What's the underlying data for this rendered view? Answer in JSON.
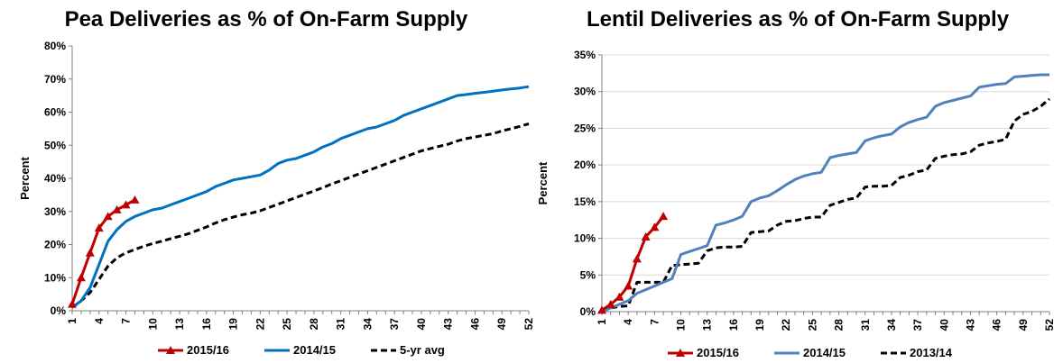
{
  "chart_data": [
    {
      "type": "line",
      "title": "Pea Deliveries as % of On-Farm Supply",
      "xlabel": "",
      "ylabel": "Percent",
      "xlim": [
        1,
        52
      ],
      "ylim": [
        0,
        80
      ],
      "yticks": [
        "0%",
        "10%",
        "20%",
        "30%",
        "40%",
        "50%",
        "60%",
        "70%",
        "80%"
      ],
      "xticks": [
        "1",
        "4",
        "7",
        "10",
        "13",
        "16",
        "19",
        "22",
        "25",
        "28",
        "31",
        "34",
        "37",
        "40",
        "43",
        "46",
        "49",
        "52"
      ],
      "grid": false,
      "legend": "bottom",
      "series": [
        {
          "name": "2015/16",
          "color": "#c00000",
          "style": "solid-triangle",
          "x": [
            1,
            2,
            3,
            4,
            5,
            6,
            7,
            8
          ],
          "y": [
            2,
            10,
            17.5,
            25,
            28.5,
            30.5,
            32,
            33.5
          ]
        },
        {
          "name": "2014/15",
          "color": "#0070c0",
          "style": "solid",
          "x": [
            1,
            2,
            3,
            4,
            5,
            6,
            7,
            8,
            9,
            10,
            11,
            12,
            13,
            14,
            15,
            16,
            17,
            18,
            19,
            20,
            21,
            22,
            23,
            24,
            25,
            26,
            27,
            28,
            29,
            30,
            31,
            32,
            33,
            34,
            35,
            36,
            37,
            38,
            39,
            40,
            41,
            42,
            43,
            44,
            45,
            46,
            47,
            48,
            49,
            50,
            51,
            52
          ],
          "y": [
            1,
            3,
            7,
            14,
            21,
            24.5,
            27,
            28.5,
            29.5,
            30.5,
            31,
            32,
            33,
            34,
            35,
            36,
            37.5,
            38.5,
            39.5,
            40,
            40.5,
            41,
            42.5,
            44.5,
            45.5,
            46,
            47,
            48,
            49.5,
            50.5,
            52,
            53,
            54,
            55,
            55.5,
            56.5,
            57.5,
            59,
            60,
            61,
            62,
            63,
            64,
            65,
            65.3,
            65.7,
            66,
            66.3,
            66.7,
            67,
            67.3,
            67.7
          ]
        },
        {
          "name": "5-yr avg",
          "color": "#000000",
          "style": "dashed",
          "x": [
            1,
            2,
            3,
            4,
            5,
            6,
            7,
            8,
            9,
            10,
            11,
            12,
            13,
            14,
            15,
            16,
            17,
            18,
            19,
            20,
            21,
            22,
            23,
            24,
            25,
            26,
            27,
            28,
            29,
            30,
            31,
            32,
            33,
            34,
            35,
            36,
            37,
            38,
            39,
            40,
            41,
            42,
            43,
            44,
            45,
            46,
            47,
            48,
            49,
            50,
            51,
            52
          ],
          "y": [
            1,
            3,
            5.5,
            9.5,
            13.5,
            16,
            17.5,
            18.5,
            19.5,
            20.3,
            21,
            21.8,
            22.5,
            23.3,
            24.3,
            25.3,
            26.5,
            27.5,
            28.3,
            29,
            29.5,
            30.2,
            31.2,
            32.2,
            33.2,
            34.2,
            35.2,
            36.2,
            37.2,
            38.3,
            39.3,
            40.3,
            41.3,
            42.3,
            43.3,
            44.3,
            45.3,
            46.3,
            47.3,
            48.3,
            49,
            49.7,
            50.3,
            51.3,
            52,
            52.5,
            53,
            53.5,
            54.3,
            55,
            55.7,
            56.5
          ]
        }
      ]
    },
    {
      "type": "line",
      "title": "Lentil Deliveries as % of On-Farm Supply",
      "xlabel": "",
      "ylabel": "Percent",
      "xlim": [
        1,
        52
      ],
      "ylim": [
        0,
        35
      ],
      "yticks": [
        "0%",
        "5%",
        "10%",
        "15%",
        "20%",
        "25%",
        "30%",
        "35%"
      ],
      "xticks": [
        "1",
        "4",
        "7",
        "10",
        "13",
        "16",
        "19",
        "22",
        "25",
        "28",
        "31",
        "34",
        "37",
        "40",
        "43",
        "46",
        "49",
        "52"
      ],
      "grid": true,
      "legend": "bottom",
      "series": [
        {
          "name": "2015/16",
          "color": "#c00000",
          "style": "solid-triangle",
          "x": [
            1,
            2,
            3,
            4,
            5,
            6,
            7,
            8
          ],
          "y": [
            0.2,
            1,
            2,
            3.5,
            7.2,
            10.2,
            11.5,
            13
          ]
        },
        {
          "name": "2014/15",
          "color": "#4f81bd",
          "style": "solid",
          "x": [
            1,
            2,
            3,
            4,
            5,
            6,
            7,
            8,
            9,
            10,
            11,
            12,
            13,
            14,
            15,
            16,
            17,
            18,
            19,
            20,
            21,
            22,
            23,
            24,
            25,
            26,
            27,
            28,
            29,
            30,
            31,
            32,
            33,
            34,
            35,
            36,
            37,
            38,
            39,
            40,
            41,
            42,
            43,
            44,
            45,
            46,
            47,
            48,
            49,
            50,
            51,
            52
          ],
          "y": [
            0,
            0.5,
            1,
            1.5,
            2.5,
            3,
            3.5,
            4,
            4.5,
            7.8,
            8.2,
            8.6,
            9,
            11.8,
            12.1,
            12.5,
            13,
            15,
            15.5,
            15.8,
            16.5,
            17.3,
            18,
            18.5,
            18.8,
            19,
            21,
            21.3,
            21.5,
            21.7,
            23.3,
            23.7,
            24,
            24.2,
            25.2,
            25.8,
            26.2,
            26.5,
            28,
            28.5,
            28.8,
            29.1,
            29.4,
            30.6,
            30.8,
            31,
            31.1,
            32,
            32.1,
            32.2,
            32.3,
            32.3
          ]
        },
        {
          "name": "2013/14",
          "color": "#000000",
          "style": "dashed",
          "x": [
            1,
            2,
            3,
            4,
            5,
            6,
            7,
            8,
            9,
            10,
            11,
            12,
            13,
            14,
            15,
            16,
            17,
            18,
            19,
            20,
            21,
            22,
            23,
            24,
            25,
            26,
            27,
            28,
            29,
            30,
            31,
            32,
            33,
            34,
            35,
            36,
            37,
            38,
            39,
            40,
            41,
            42,
            43,
            44,
            45,
            46,
            47,
            48,
            49,
            50,
            51,
            52
          ],
          "y": [
            0,
            0.5,
            0.7,
            0.8,
            4,
            4,
            4,
            4,
            6.3,
            6.4,
            6.5,
            6.6,
            8.3,
            8.7,
            8.8,
            8.8,
            8.9,
            10.8,
            10.9,
            11,
            11.8,
            12.3,
            12.4,
            12.7,
            12.9,
            12.9,
            14.5,
            14.9,
            15.3,
            15.5,
            17,
            17.1,
            17.1,
            17.2,
            18.3,
            18.6,
            19.1,
            19.3,
            20.9,
            21.2,
            21.4,
            21.5,
            21.8,
            22.7,
            23,
            23.2,
            23.5,
            26,
            26.9,
            27.3,
            28,
            29
          ]
        }
      ]
    }
  ]
}
